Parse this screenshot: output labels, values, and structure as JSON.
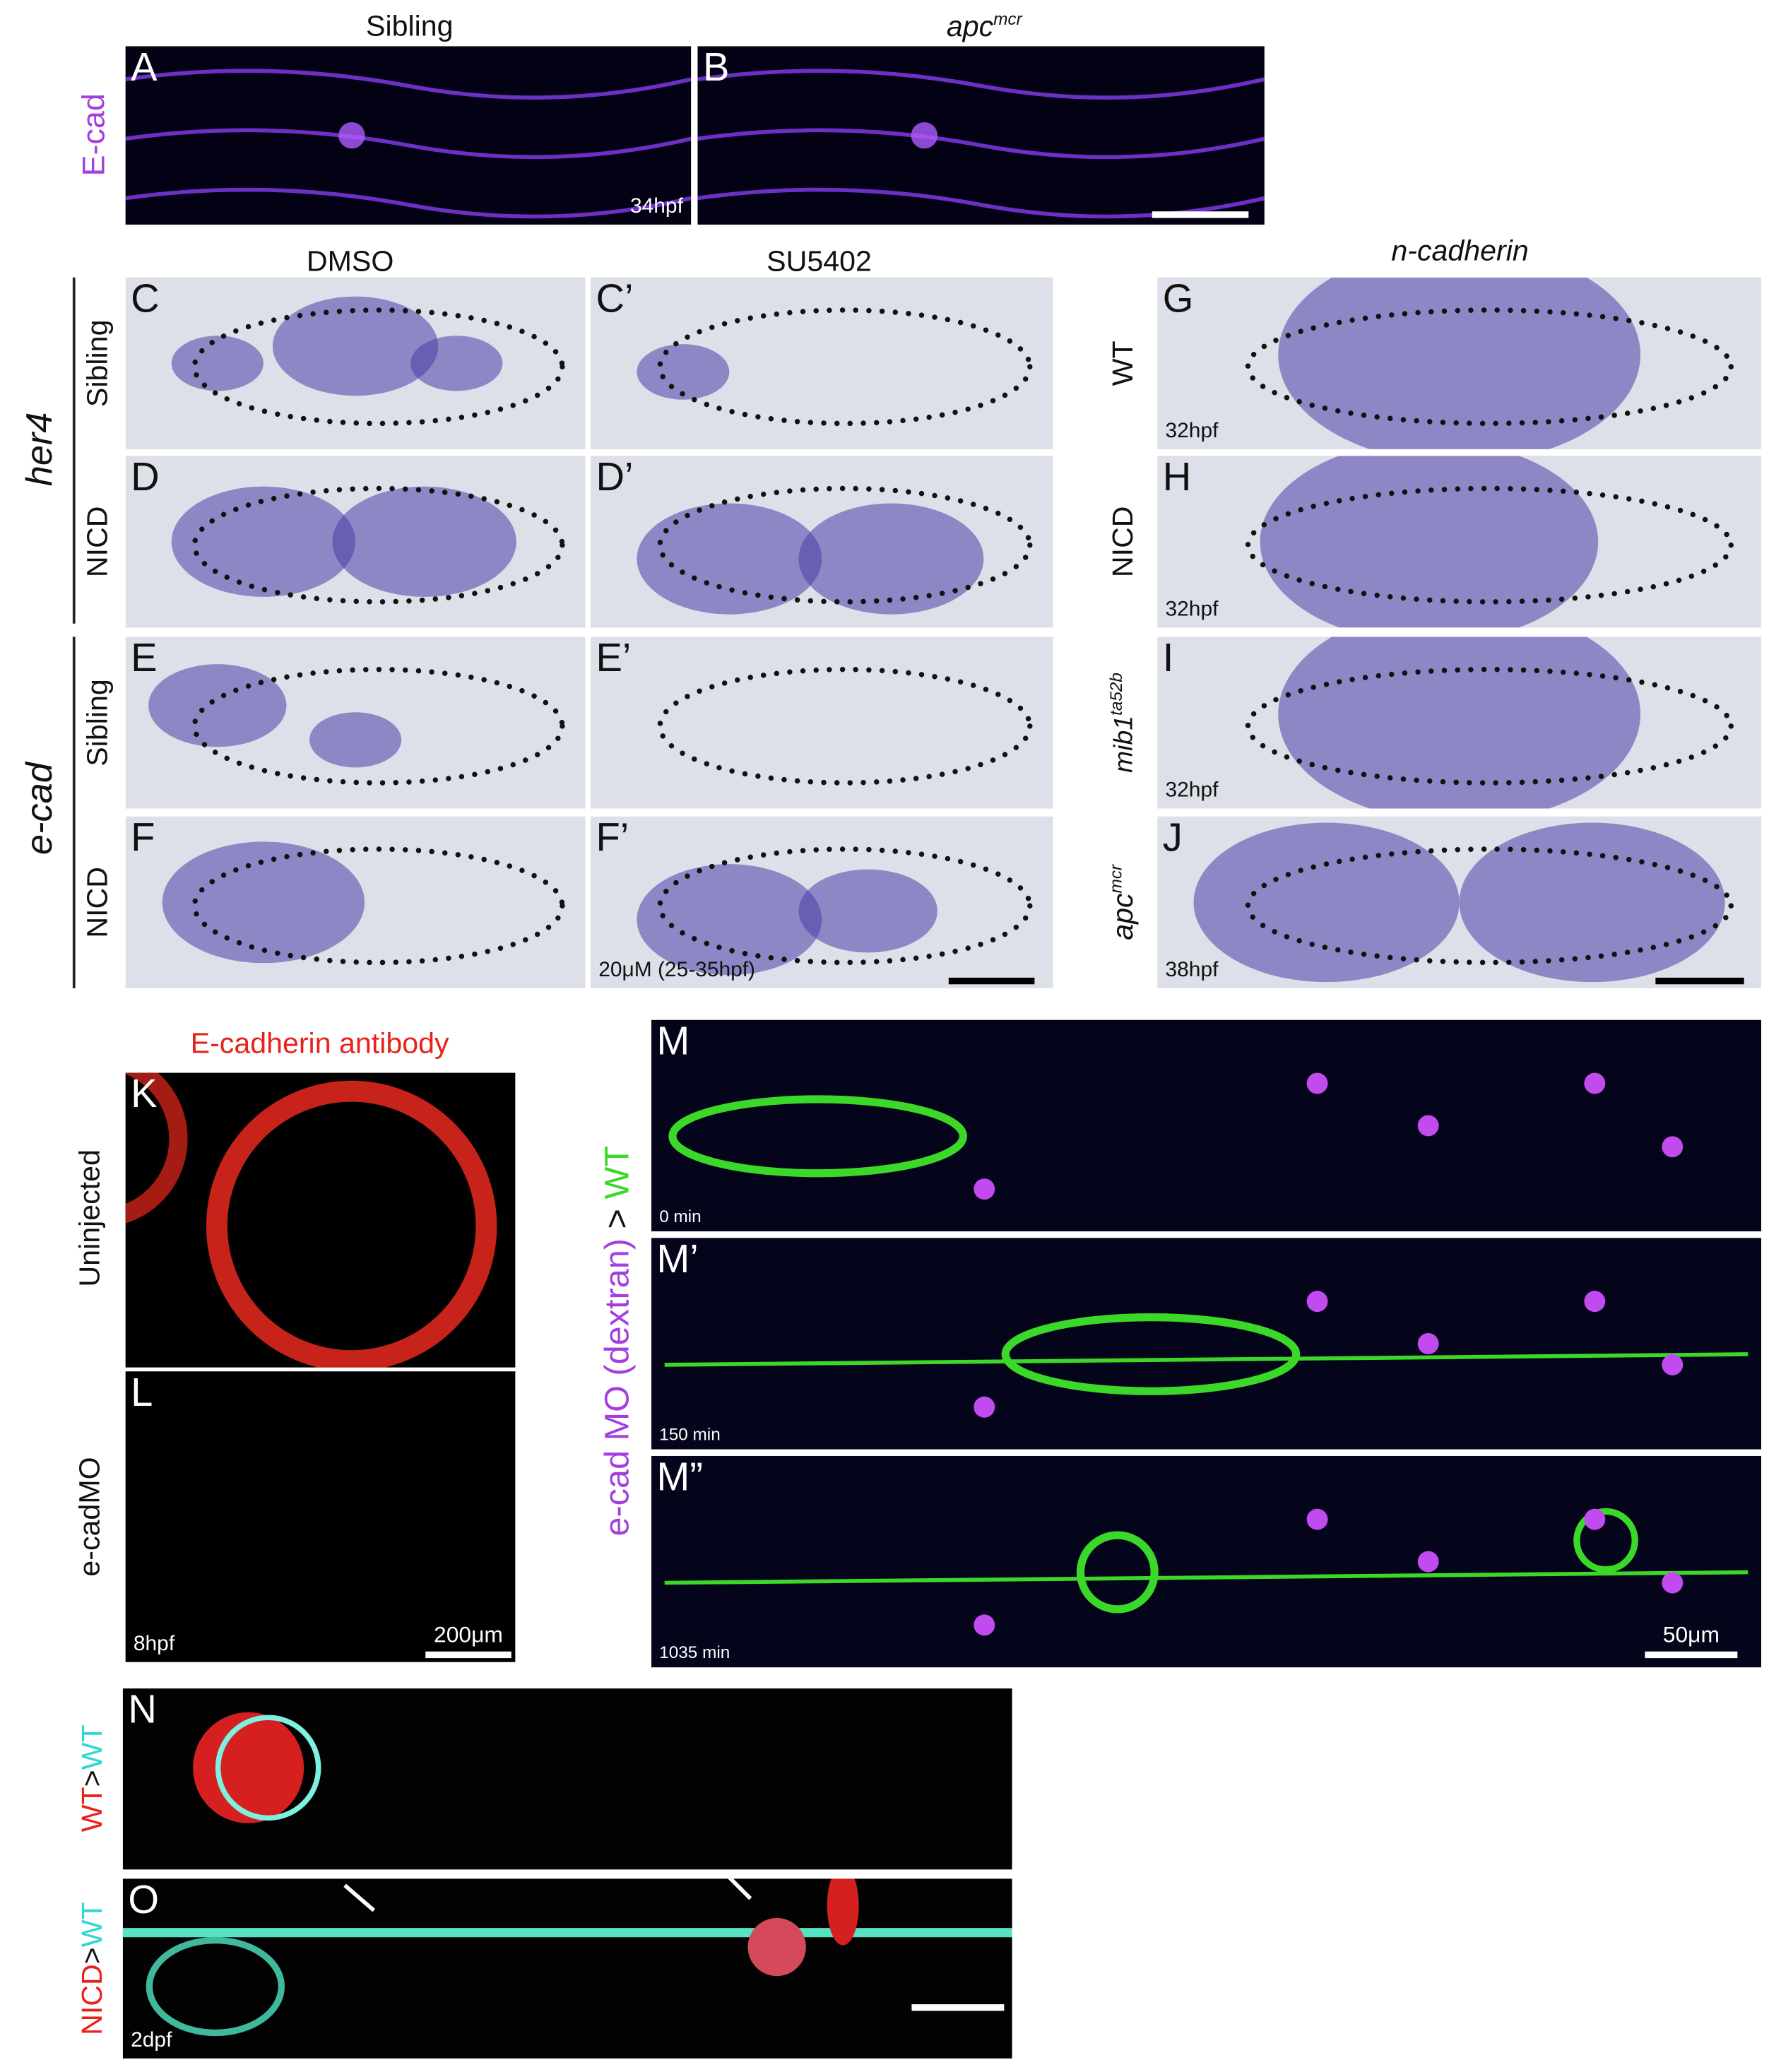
{
  "headers": {
    "sibling": "Sibling",
    "apc": "apc",
    "apc_sup": "mcr",
    "dmso": "DMSO",
    "su5402": "SU5402",
    "n_cadherin": "n-cadherin",
    "antibody": "E-cadherin antibody"
  },
  "row_labels": {
    "ecad_stain": "E-cad",
    "her4": "her4",
    "her4_sibling": "Sibling",
    "her4_nicd": "NICD",
    "ecad": "e-cad",
    "ecad_sibling": "Sibling",
    "ecad_nicd": "NICD",
    "wt": "WT",
    "nicd": "NICD",
    "mib1": "mib1",
    "mib1_sup": "ta52b",
    "apc": "apc",
    "apc_sup": "mcr",
    "uninjected": "Uninjected",
    "ecadmo": "e-cadMO",
    "m_label": {
      "morpholino": "e-cad MO (dextran)",
      "arrow": ">",
      "target": "WT"
    },
    "n_label": {
      "donor": "WT",
      "arrow": ">",
      "host": "WT"
    },
    "o_label": {
      "donor": "NICD",
      "arrow": ">",
      "host": "WT"
    }
  },
  "panels": [
    {
      "label": "A",
      "note": "34hpf"
    },
    {
      "label": "B"
    },
    {
      "label": "C"
    },
    {
      "label": "C’"
    },
    {
      "label": "D"
    },
    {
      "label": "D’"
    },
    {
      "label": "E"
    },
    {
      "label": "E’"
    },
    {
      "label": "F"
    },
    {
      "label": "F’",
      "note": "20μM (25-35hpf)"
    },
    {
      "label": "G",
      "note": "32hpf"
    },
    {
      "label": "H",
      "note": "32hpf"
    },
    {
      "label": "I",
      "note": "32hpf"
    },
    {
      "label": "J",
      "note": "38hpf"
    },
    {
      "label": "K"
    },
    {
      "label": "L",
      "note": "8hpf",
      "scale": "200μm"
    },
    {
      "label": "M",
      "note": "0 min"
    },
    {
      "label": "M’",
      "note": "150 min"
    },
    {
      "label": "M”",
      "note": "1035 min",
      "scale": "50μm"
    },
    {
      "label": "N"
    },
    {
      "label": "O",
      "note": "2dpf"
    }
  ]
}
